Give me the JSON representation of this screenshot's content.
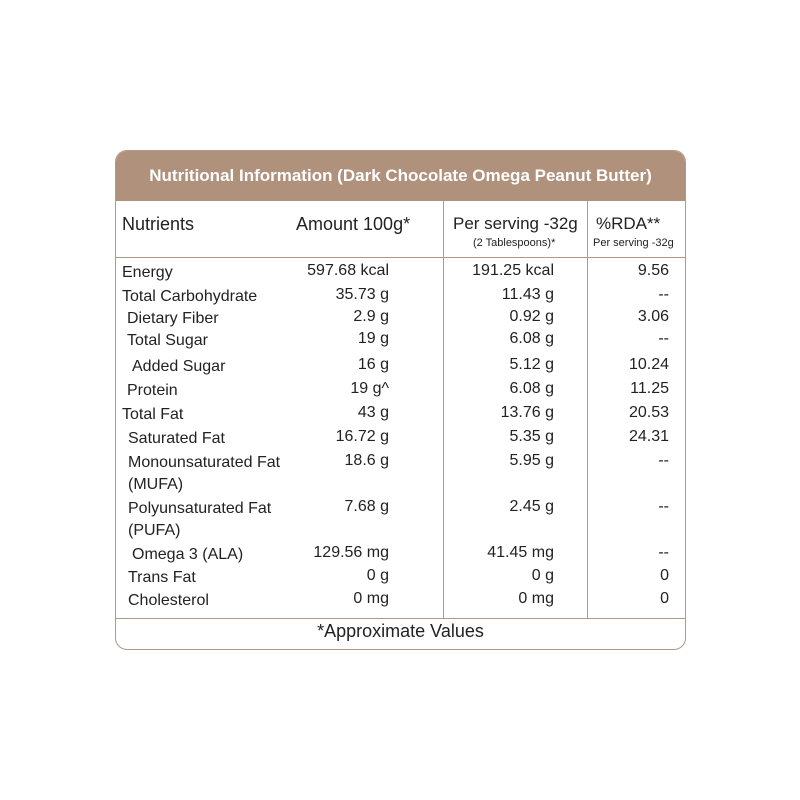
{
  "header": {
    "title": "Nutritional Information (Dark Chocolate Omega Peanut Butter)"
  },
  "table": {
    "columns": {
      "nutrients": "Nutrients",
      "amount": "Amount 100g*",
      "serving": "Per serving -32g",
      "serving_note": "(2 Tablespoons)*",
      "rda": "%RDA**",
      "rda_note": "Per serving -32g"
    },
    "rows": [
      [
        "Energy",
        "597.68 kcal",
        "191.25 kcal",
        "9.56"
      ],
      [
        "Total Carbohydrate",
        "35.73 g",
        "11.43 g",
        "--"
      ],
      [
        "Dietary Fiber",
        "2.9 g",
        "0.92 g",
        "3.06"
      ],
      [
        "Total Sugar",
        "19 g",
        "6.08 g",
        "--"
      ],
      [
        "Added Sugar",
        "16 g",
        "5.12 g",
        "10.24"
      ],
      [
        "Protein",
        "19 g^",
        "6.08 g",
        "11.25"
      ],
      [
        "Total Fat",
        "43 g",
        "13.76 g",
        "20.53"
      ],
      [
        "Saturated Fat",
        "16.72 g",
        "5.35 g",
        "24.31"
      ],
      [
        "Monounsaturated Fat (MUFA)",
        "18.6 g",
        "5.95 g",
        "--"
      ],
      [
        "Polyunsaturated Fat (PUFA)",
        "7.68 g",
        "2.45 g",
        "--"
      ],
      [
        "Omega 3 (ALA)",
        "129.56 mg",
        "41.45 mg",
        "--"
      ],
      [
        "Trans Fat",
        "0 g",
        "0 g",
        "0"
      ],
      [
        "Cholesterol",
        "0 mg",
        "0 mg",
        "0"
      ]
    ]
  },
  "footnote": "*Approximate Values"
}
